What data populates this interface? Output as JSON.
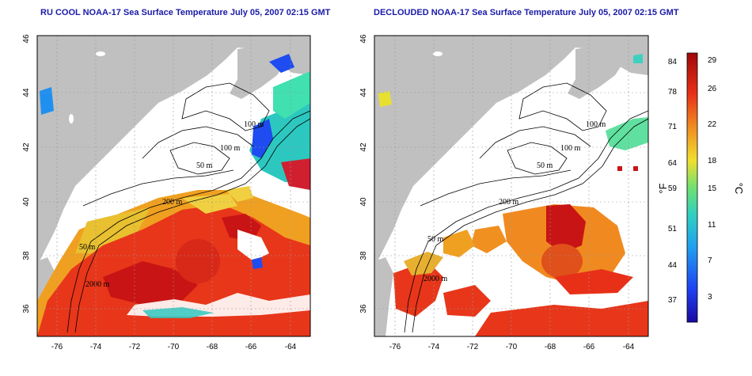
{
  "panels": [
    {
      "title": "RU COOL NOAA-17 Sea Surface Temperature July 05, 2007 02:15 GMT"
    },
    {
      "title": "DECLOUDED NOAA-17 Sea Surface Temperature July 05, 2007 02:15 GMT"
    }
  ],
  "axes": {
    "x_ticks": [
      "-76",
      "-74",
      "-72",
      "-70",
      "-68",
      "-66",
      "-64"
    ],
    "y_ticks": [
      "36",
      "38",
      "40",
      "42",
      "44",
      "46"
    ],
    "xlim": [
      -77,
      -63
    ],
    "ylim": [
      35,
      46
    ]
  },
  "contour_labels": [
    "100 m",
    "100 m",
    "50 m",
    "200 m",
    "50 m",
    "2000 m"
  ],
  "colorbar": {
    "f_ticks": [
      "84",
      "78",
      "71",
      "64",
      "59",
      "51",
      "44",
      "37"
    ],
    "c_ticks": [
      "29",
      "26",
      "22",
      "18",
      "15",
      "11",
      "7",
      "3"
    ],
    "f_unit": "°F",
    "c_unit": "°C"
  },
  "colors": {
    "land": "#c0c0c0",
    "cloud": "#ffffff",
    "warm": "#e8361a",
    "hot": "#c81414",
    "mid": "#f08a20",
    "cool": "#30c8c0",
    "cold": "#1e4cf0",
    "title": "#1a1aa8"
  }
}
